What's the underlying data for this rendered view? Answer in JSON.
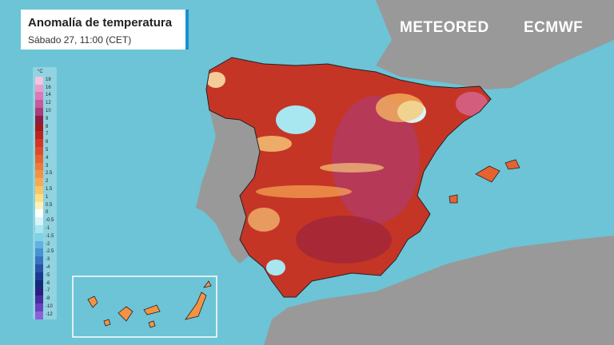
{
  "header": {
    "title": "Anomalía de temperatura",
    "subtitle": "Sábado 27, 11:00 (CET)"
  },
  "logos": {
    "meteored": "METEORED",
    "ecmwf": "ECMWF"
  },
  "legend": {
    "unit": "°C",
    "items": [
      {
        "label": 18,
        "color": "#f4c4e0"
      },
      {
        "label": 16,
        "color": "#ea9ccc"
      },
      {
        "label": 14,
        "color": "#dc78b6"
      },
      {
        "label": 12,
        "color": "#c8589c"
      },
      {
        "label": 10,
        "color": "#ac3c78"
      },
      {
        "label": 9,
        "color": "#8e1c44"
      },
      {
        "label": 8,
        "color": "#a41a1c"
      },
      {
        "label": 7,
        "color": "#c02222"
      },
      {
        "label": 6,
        "color": "#d63424"
      },
      {
        "label": 5,
        "color": "#e04a28"
      },
      {
        "label": 4,
        "color": "#e86230"
      },
      {
        "label": 3,
        "color": "#f07a38"
      },
      {
        "label": 2.5,
        "color": "#f49244"
      },
      {
        "label": 2,
        "color": "#f8aa52"
      },
      {
        "label": 1.5,
        "color": "#fcc464"
      },
      {
        "label": 1,
        "color": "#fde084"
      },
      {
        "label": 0.5,
        "color": "#fff2b8"
      },
      {
        "label": 0,
        "color": "#ffffff"
      },
      {
        "label": -0.5,
        "color": "#d8f4f8"
      },
      {
        "label": -1,
        "color": "#a8e6f0"
      },
      {
        "label": -1.5,
        "color": "#80d0e8"
      },
      {
        "label": -2,
        "color": "#60b2e0"
      },
      {
        "label": -2.5,
        "color": "#4892d0"
      },
      {
        "label": -3,
        "color": "#3872c0"
      },
      {
        "label": -4,
        "color": "#2852a8"
      },
      {
        "label": -5,
        "color": "#1c3a90"
      },
      {
        "label": -6,
        "color": "#122a78"
      },
      {
        "label": -7,
        "color": "#2c1c80"
      },
      {
        "label": -8,
        "color": "#4a2aa0"
      },
      {
        "label": -10,
        "color": "#6a42c0"
      },
      {
        "label": -12,
        "color": "#8a62d8"
      }
    ]
  }
}
